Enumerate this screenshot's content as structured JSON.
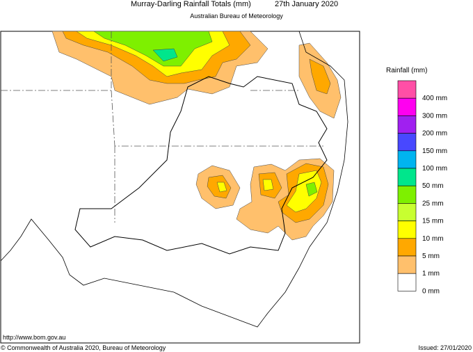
{
  "header": {
    "title": "Murray-Darling Rainfall Totals (mm)",
    "date": "27th January 2020",
    "subtitle": "Australian Bureau of Meteorology"
  },
  "legend": {
    "title": "Rainfall (mm)",
    "items": [
      {
        "label": "400 mm",
        "color": "#ff4fa6"
      },
      {
        "label": "300 mm",
        "color": "#ff00f0"
      },
      {
        "label": "200 mm",
        "color": "#a020f0"
      },
      {
        "label": "150 mm",
        "color": "#4848ff"
      },
      {
        "label": "100 mm",
        "color": "#00b4f0"
      },
      {
        "label": "50 mm",
        "color": "#00e68c"
      },
      {
        "label": "25 mm",
        "color": "#7ef000"
      },
      {
        "label": "15 mm",
        "color": "#c8ff30"
      },
      {
        "label": "10 mm",
        "color": "#ffff00"
      },
      {
        "label": "5 mm",
        "color": "#ffa800"
      },
      {
        "label": "1 mm",
        "color": "#ffc06c"
      },
      {
        "label": "0 mm",
        "color": "#ffffff"
      }
    ]
  },
  "footer": {
    "url": "http://www.bom.gov.au",
    "copyright": "© Commonwealth of Australia 2020, Bureau of Meteorology",
    "issued": "Issued: 27/01/2020"
  }
}
